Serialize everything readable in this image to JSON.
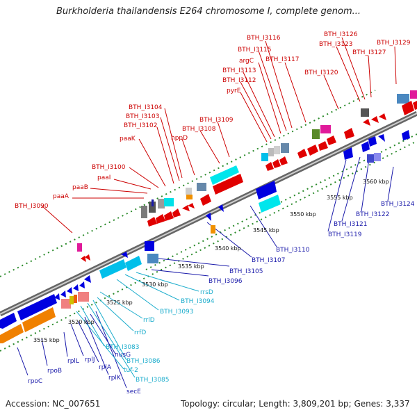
{
  "title": "Burkholderia thailandensis E264 chromosome I, complete genom...",
  "footer": {
    "accession": "Accession: NC_007651",
    "summary": "Topology: circular; Length: 3,809,201 bp; Genes: 3,337"
  },
  "colors": {
    "forward_label": "#cc0000",
    "reverse_label": "#1a1aaa",
    "rna_label": "#1aaccc",
    "backbone": "#777777"
  },
  "ticks": [
    "3515 kbp",
    "3520 kbp",
    "3525 kbp",
    "3530 kbp",
    "3535 kbp",
    "3540 kbp",
    "3545 kbp",
    "3550 kbp",
    "3555 kbp",
    "3560 kbp"
  ],
  "forward_labels": [
    "BTH_I3090",
    "paaA",
    "paaB",
    "paaI",
    "BTH_I3100",
    "paaK",
    "BTH_I3102",
    "BTH_I3103",
    "BTH_I3104",
    "hppD",
    "BTH_I3108",
    "BTH_I3109",
    "pyrE",
    "BTH_I3112",
    "BTH_I3113",
    "argC",
    "BTH_I3115",
    "BTH_I3116",
    "BTH_I3117",
    "BTH_I3120",
    "BTH_I3123",
    "BTH_I3126",
    "BTH_I3127",
    "BTH_I3129"
  ],
  "reverse_labels": [
    "rpoC",
    "rpoB",
    "rplL",
    "rplJ",
    "rplA",
    "rplK",
    "nusG",
    "secE",
    "BTH_I3096",
    "BTH_I3105",
    "BTH_I3107",
    "BTH_I3110",
    "BTH_I3119",
    "BTH_I3121",
    "BTH_I3122",
    "BTH_I3124"
  ],
  "rna_labels": [
    "tuf-2",
    "BTH_I3083",
    "BTH_I3085",
    "BTH_I3086",
    "rrfD",
    "rrlD",
    "BTH_I3093",
    "BTH_I3094",
    "rrsD"
  ]
}
